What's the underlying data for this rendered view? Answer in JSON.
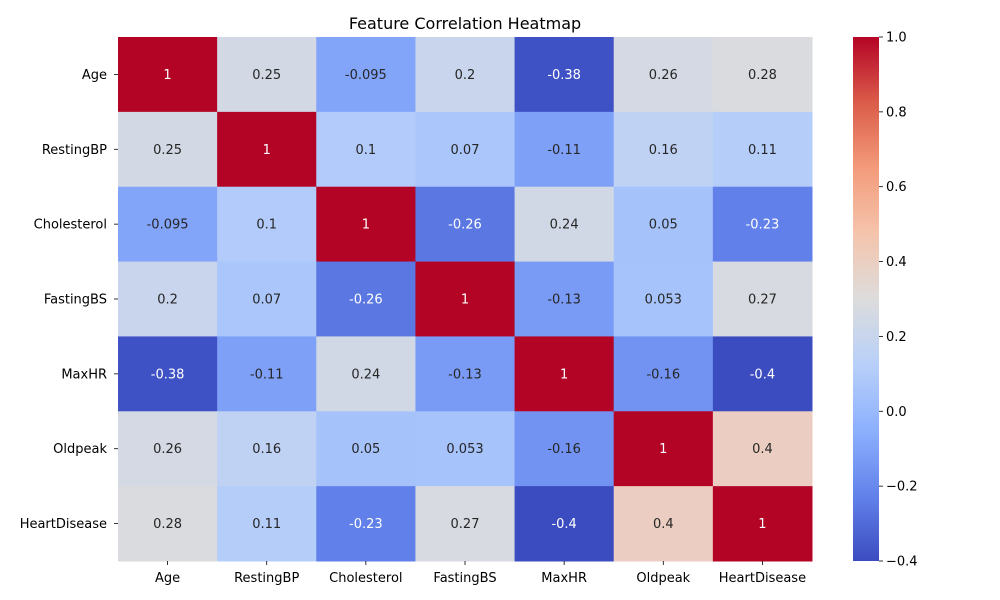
{
  "chart_data": {
    "type": "heatmap",
    "title": "Feature Correlation Heatmap",
    "xlabel": "",
    "ylabel": "",
    "x_categories": [
      "Age",
      "RestingBP",
      "Cholesterol",
      "FastingBS",
      "MaxHR",
      "Oldpeak",
      "HeartDisease"
    ],
    "y_categories": [
      "Age",
      "RestingBP",
      "Cholesterol",
      "FastingBS",
      "MaxHR",
      "Oldpeak",
      "HeartDisease"
    ],
    "values": [
      [
        1,
        0.25,
        -0.095,
        0.2,
        -0.38,
        0.26,
        0.28
      ],
      [
        0.25,
        1,
        0.1,
        0.07,
        -0.11,
        0.16,
        0.11
      ],
      [
        -0.095,
        0.1,
        1,
        -0.26,
        0.24,
        0.05,
        -0.23
      ],
      [
        0.2,
        0.07,
        -0.26,
        1,
        -0.13,
        0.053,
        0.27
      ],
      [
        -0.38,
        -0.11,
        0.24,
        -0.13,
        1,
        -0.16,
        -0.4
      ],
      [
        0.26,
        0.16,
        0.05,
        0.053,
        -0.16,
        1,
        0.4
      ],
      [
        0.28,
        0.11,
        -0.23,
        0.27,
        -0.4,
        0.4,
        1
      ]
    ],
    "annotations": [
      [
        "1",
        "0.25",
        "-0.095",
        "0.2",
        "-0.38",
        "0.26",
        "0.28"
      ],
      [
        "0.25",
        "1",
        "0.1",
        "0.07",
        "-0.11",
        "0.16",
        "0.11"
      ],
      [
        "-0.095",
        "0.1",
        "1",
        "-0.26",
        "0.24",
        "0.05",
        "-0.23"
      ],
      [
        "0.2",
        "0.07",
        "-0.26",
        "1",
        "-0.13",
        "0.053",
        "0.27"
      ],
      [
        "-0.38",
        "-0.11",
        "0.24",
        "-0.13",
        "1",
        "-0.16",
        "-0.4"
      ],
      [
        "0.26",
        "0.16",
        "0.05",
        "0.053",
        "-0.16",
        "1",
        "0.4"
      ],
      [
        "0.28",
        "0.11",
        "-0.23",
        "0.27",
        "-0.4",
        "0.4",
        "1"
      ]
    ],
    "colormap": "coolwarm",
    "color_range": [
      -0.4,
      1.0
    ],
    "colorbar_ticks": [
      1.0,
      0.8,
      0.6,
      0.4,
      0.2,
      0.0,
      -0.2,
      -0.4
    ],
    "colorbar_tick_labels": [
      "1.0",
      "0.8",
      "0.6",
      "0.4",
      "0.2",
      "0.0",
      "−0.2",
      "−0.4"
    ],
    "colormap_stops": [
      "#3b4cc0",
      "#6282ea",
      "#8db0fe",
      "#b8d0f9",
      "#dddcdc",
      "#f5c4ac",
      "#f39b7b",
      "#db5c4a",
      "#b40426"
    ],
    "grid": false,
    "legend": "colorbar-right"
  }
}
